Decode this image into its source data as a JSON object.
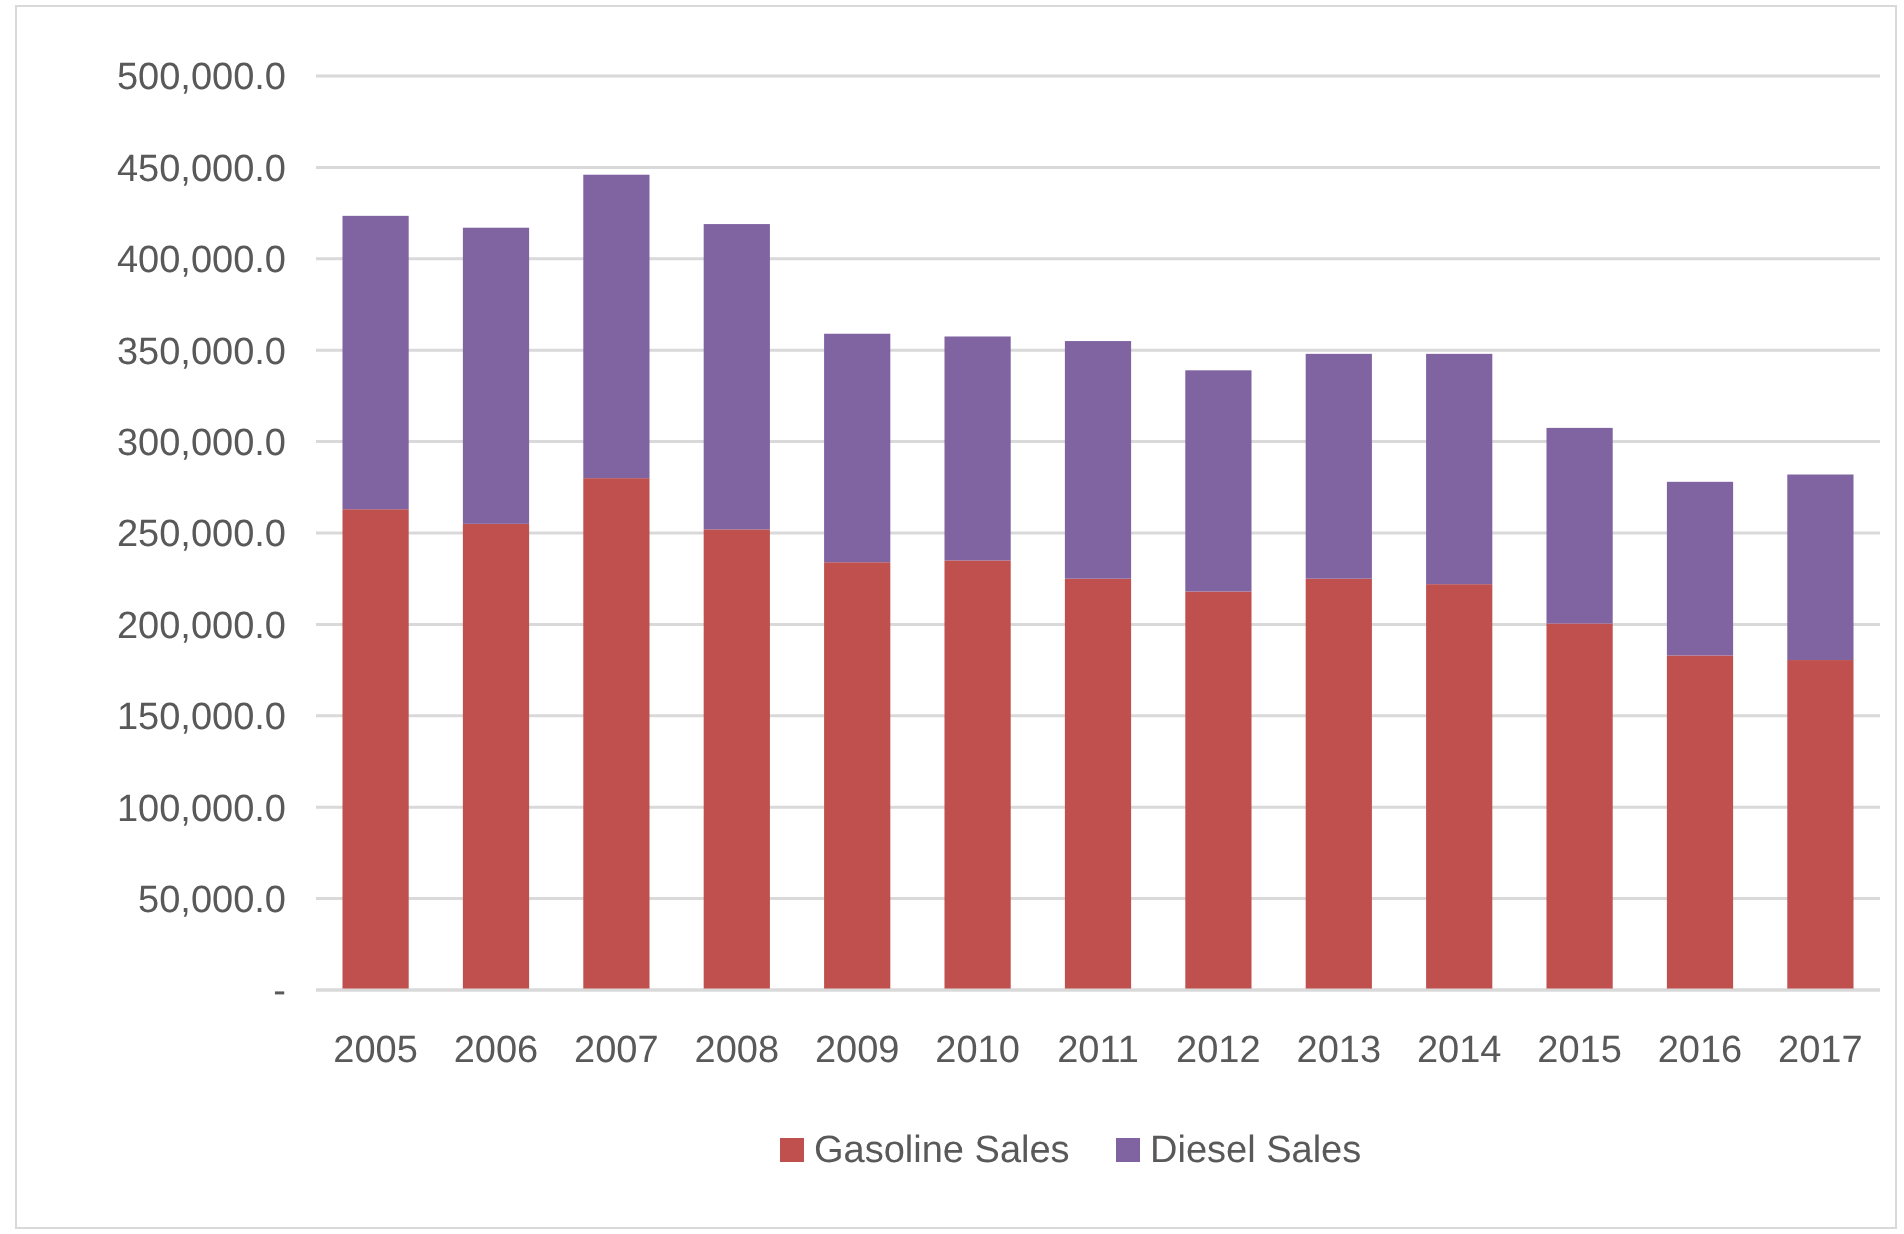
{
  "chart_data": {
    "type": "bar",
    "stacked": true,
    "categories": [
      "2005",
      "2006",
      "2007",
      "2008",
      "2009",
      "2010",
      "2011",
      "2012",
      "2013",
      "2014",
      "2015",
      "2016",
      "2017"
    ],
    "series": [
      {
        "name": "Gasoline Sales",
        "color": "#c0504d",
        "values": [
          263000,
          255000,
          280000,
          252000,
          234000,
          235000,
          225000,
          218000,
          225000,
          222000,
          200500,
          183000,
          180500
        ]
      },
      {
        "name": "Diesel Sales",
        "color": "#8064a2",
        "values": [
          160500,
          162000,
          166000,
          167000,
          125000,
          122500,
          130000,
          121000,
          123000,
          126000,
          107000,
          95000,
          101500
        ]
      }
    ],
    "ylim": [
      0,
      500000
    ],
    "yticks": [
      {
        "value": 0,
        "label": "-"
      },
      {
        "value": 50000,
        "label": "50,000.0"
      },
      {
        "value": 100000,
        "label": "100,000.0"
      },
      {
        "value": 150000,
        "label": "150,000.0"
      },
      {
        "value": 200000,
        "label": "200,000.0"
      },
      {
        "value": 250000,
        "label": "250,000.0"
      },
      {
        "value": 300000,
        "label": "300,000.0"
      },
      {
        "value": 350000,
        "label": "350,000.0"
      },
      {
        "value": 400000,
        "label": "400,000.0"
      },
      {
        "value": 450000,
        "label": "450,000.0"
      },
      {
        "value": 500000,
        "label": "500,000.0"
      }
    ],
    "grid": "y",
    "legend": "bottom"
  }
}
